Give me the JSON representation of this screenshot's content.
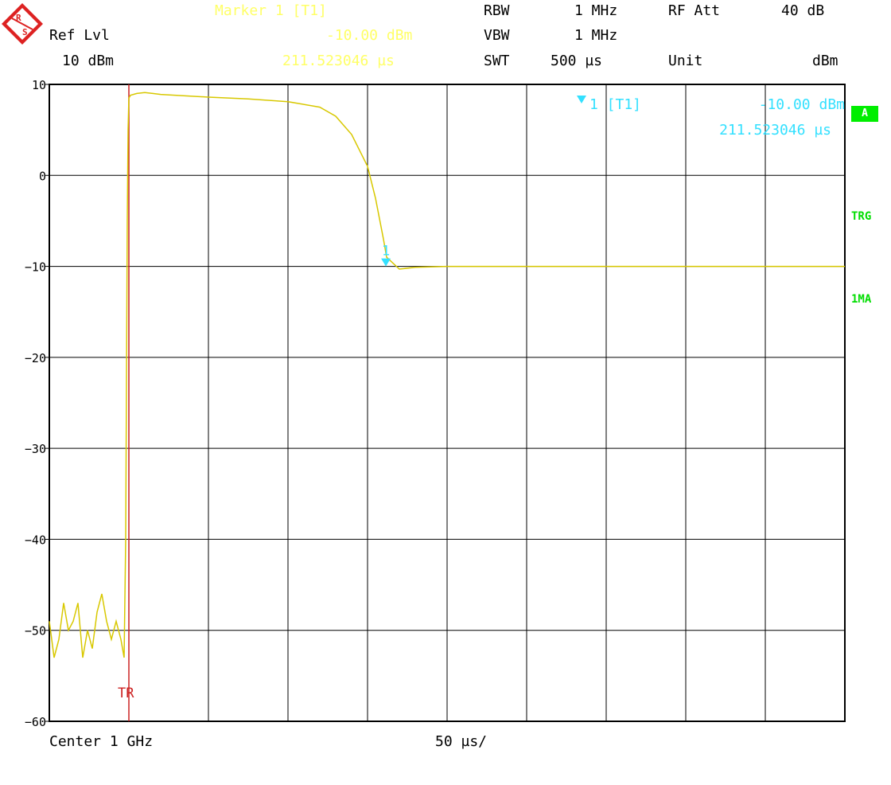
{
  "header": {
    "marker_title": "Marker 1 [T1]",
    "marker_level": "-10.00 dBm",
    "marker_time": "211.523046 µs",
    "ref_lvl_label": "Ref Lvl",
    "ref_lvl_value": "10 dBm",
    "rbw_label": "RBW",
    "rbw_value": "1 MHz",
    "vbw_label": "VBW",
    "vbw_value": "1 MHz",
    "swt_label": "SWT",
    "swt_value": "500 µs",
    "rfatt_label": "RF Att",
    "rfatt_value": "40 dB",
    "unit_label": "Unit",
    "unit_value": "dBm"
  },
  "footer": {
    "center": "Center 1 GHz",
    "span": "50 µs/"
  },
  "side_tags": {
    "trace": "A",
    "trg": "TRG",
    "det": "1MA"
  },
  "colors": {
    "trace": "#d8c800",
    "marker": "#33e0ff",
    "trigger": "#cc2222",
    "grid": "#000000",
    "status": "#00dd00"
  },
  "chart_data": {
    "type": "line",
    "title": "",
    "xlabel": "",
    "ylabel": "",
    "ylim": [
      -60,
      10
    ],
    "xlim": [
      0,
      500
    ],
    "x_unit": "µs",
    "y_unit": "dBm",
    "y_ticks": [
      10,
      0,
      -10,
      -20,
      -30,
      -40,
      -50,
      -60
    ],
    "x_divisions": 10,
    "grid": true,
    "series": [
      {
        "x": [
          0,
          3,
          6,
          9,
          12,
          15,
          18,
          21,
          24,
          27,
          30,
          33,
          36,
          39,
          42,
          45,
          47,
          48,
          49,
          49.5,
          50,
          51,
          55,
          60,
          65,
          70,
          80,
          100,
          125,
          150,
          170,
          180,
          190,
          200,
          205,
          210,
          212,
          220,
          230,
          250,
          280,
          300,
          350,
          400,
          450,
          500
        ],
        "y": [
          -49,
          -53,
          -51,
          -47,
          -50,
          -49,
          -47,
          -53,
          -50,
          -52,
          -48,
          -46,
          -49,
          -51,
          -49,
          -51,
          -53,
          -40,
          -5,
          5,
          8.5,
          8.8,
          9,
          9.1,
          9.0,
          8.9,
          8.8,
          8.6,
          8.4,
          8.1,
          7.5,
          6.5,
          4.5,
          1.0,
          -2.5,
          -7.0,
          -9.0,
          -10.3,
          -10.1,
          -10.0,
          -10.0,
          -10.0,
          -10.0,
          -10.0,
          -10.0,
          -10.0
        ]
      }
    ],
    "marker": {
      "label": "1 [T1]",
      "id": "1",
      "x": 211.523046,
      "y": -10.0,
      "level_text": "-10.00 dBm",
      "time_text": "211.523046 µs"
    },
    "trigger": {
      "label": "TR",
      "x": 50
    }
  }
}
